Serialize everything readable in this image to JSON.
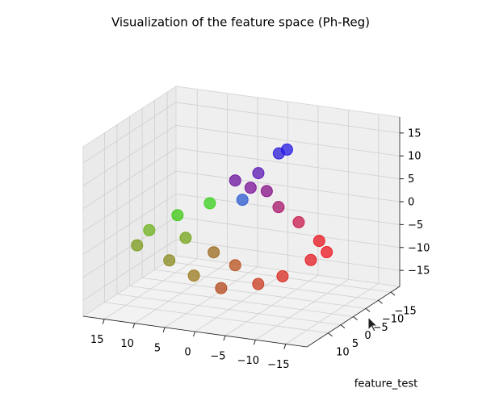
{
  "chart_data": {
    "type": "scatter3d",
    "title": "Visualization of the feature space (Ph-Reg)",
    "annotation": "feature_test",
    "xlim": [
      -18.5,
      18.5
    ],
    "ylim": [
      -18.5,
      18.5
    ],
    "zlim": [
      -18.5,
      18.5
    ],
    "xticks": [
      {
        "value": -15,
        "label": "−15"
      },
      {
        "value": -10,
        "label": "−10"
      },
      {
        "value": -5,
        "label": "−5"
      },
      0,
      5,
      10,
      15
    ],
    "yticks": [
      {
        "value": -15,
        "label": "−15"
      },
      {
        "value": -10,
        "label": "−10"
      },
      {
        "value": -5,
        "label": "−5"
      },
      0,
      5,
      10
    ],
    "zticks": [
      {
        "value": -15,
        "label": "−15"
      },
      {
        "value": -10,
        "label": "−10"
      },
      {
        "value": -5,
        "label": "−5"
      },
      0,
      5,
      10,
      15
    ],
    "grid": true,
    "x": [
      -5.4,
      -2.8,
      -2.3,
      -1.7,
      2.9,
      7.5,
      11.4,
      14.2,
      9.6,
      4.8,
      -0.5,
      3.8,
      -5.1,
      -6.8,
      -8.4,
      -9,
      -6.4,
      -4.6,
      -3.4,
      7.7,
      -0.5,
      -6,
      -0.5,
      -9.5
    ],
    "y": [
      -1.9,
      0,
      1.9,
      3.7,
      5.6,
      7.4,
      9.3,
      7.4,
      5.6,
      7.4,
      9.3,
      1.9,
      5.6,
      0,
      -7.4,
      -9.3,
      -7.4,
      -3.7,
      -1.9,
      3.7,
      3.7,
      -3.7,
      3.7,
      -11.1
    ],
    "z": [
      14.1,
      10,
      7.4,
      5.3,
      4.4,
      1.6,
      -1.7,
      -6.2,
      -9.3,
      -11.1,
      -12.2,
      -7.8,
      -11.8,
      -11.8,
      -10.6,
      -7,
      -2.7,
      1.6,
      5.5,
      -4.7,
      -9.2,
      14.4,
      9.3,
      -10
    ],
    "colors": [
      "#2a1ad8",
      "#5a14b4",
      "#781098",
      "#2a5ad0",
      "#38d01a",
      "#3ec812",
      "#6cb018",
      "#7a9a18",
      "#8a8a1c",
      "#9a7a1c",
      "#b4461a",
      "#9a6a1e",
      "#c8381c",
      "#d8281e",
      "#e41a20",
      "#e8141e",
      "#c8184a",
      "#a81468",
      "#861086",
      "#74a41a",
      "#b8501c",
      "#2418e4",
      "#6a129e",
      "#ec1420"
    ]
  }
}
